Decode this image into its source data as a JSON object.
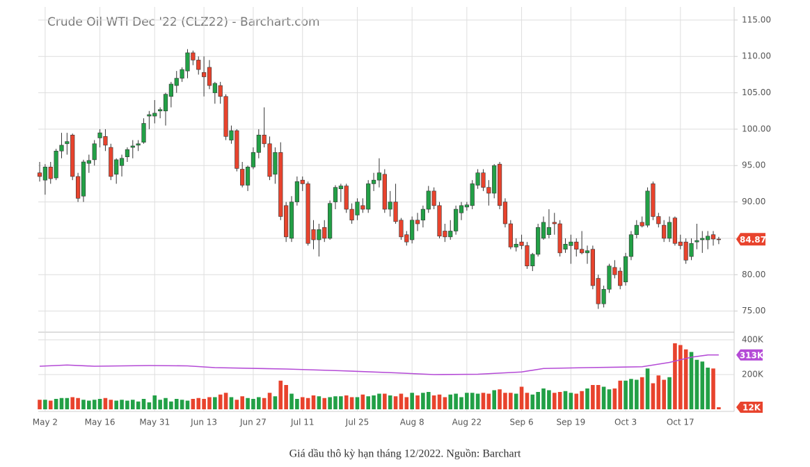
{
  "chart_data": [
    {
      "type": "candlestick",
      "title": "Crude Oil WTI Dec '22 (CLZ22) - Barchart.com",
      "categories": [
        null,
        "May 2",
        null,
        null,
        null,
        null,
        null,
        null,
        null,
        null,
        null,
        "May 16",
        null,
        null,
        null,
        null,
        null,
        null,
        null,
        null,
        null,
        "May 31",
        null,
        null,
        null,
        null,
        null,
        null,
        null,
        null,
        "Jun 13",
        null,
        null,
        null,
        null,
        null,
        null,
        null,
        null,
        "Jun 27",
        null,
        null,
        null,
        null,
        null,
        null,
        null,
        null,
        "Jul 11",
        null,
        null,
        null,
        null,
        null,
        null,
        null,
        null,
        null,
        "Jul 25",
        null,
        null,
        null,
        null,
        null,
        null,
        null,
        null,
        null,
        "Aug 8",
        null,
        null,
        null,
        null,
        null,
        null,
        null,
        null,
        null,
        "Aug 22",
        null,
        null,
        null,
        null,
        null,
        null,
        null,
        null,
        null,
        "Sep 6",
        null,
        null,
        null,
        null,
        null,
        null,
        null,
        null,
        "Sep 19",
        null,
        null,
        null,
        null,
        null,
        null,
        null,
        null,
        null,
        "Oct 3",
        null,
        null,
        null,
        null,
        null,
        null,
        null,
        null,
        null,
        "Oct 17",
        null,
        null,
        null,
        null,
        null,
        null,
        null
      ],
      "open": [
        94,
        93,
        94.8,
        93.3,
        97,
        98,
        99.2,
        93.5,
        90.8,
        95.3,
        95.8,
        98.8,
        99,
        97.5,
        93.8,
        95,
        96.2,
        97.5,
        97.8,
        98.2,
        101.8,
        101.8,
        102.5,
        102.5,
        104.5,
        106,
        107,
        108,
        110.5,
        109.5,
        107.8,
        108.5,
        105,
        106,
        104.5,
        98.5,
        99.8,
        94.5,
        92.3,
        94.8,
        96.8,
        99.2,
        98,
        93.8,
        96.8,
        89.5,
        85,
        90,
        93,
        92.5,
        86.2,
        84.8,
        86.5,
        85,
        90,
        91.8,
        92.2,
        89,
        88.2,
        89.5,
        89,
        92.5,
        93,
        93.8,
        89,
        90,
        87.5,
        85.5,
        84.8,
        87.5,
        87.5,
        89,
        91.5,
        89.5,
        86,
        85.2,
        86,
        88.5,
        89.3,
        89.5,
        92.3,
        94,
        92,
        91.2,
        95.2,
        90,
        87,
        83.8,
        84.5,
        84,
        81.2,
        82.8,
        85,
        85.5,
        87.2,
        87,
        83.5,
        84,
        84.5,
        83.5,
        83,
        83.5,
        79.5,
        76,
        78,
        81,
        80.5,
        79,
        82.5,
        85.5,
        87.2,
        86.8,
        92.5,
        88,
        86.8,
        85,
        87.8,
        84.5,
        84.5,
        82.5,
        84.5,
        84.8,
        84.8,
        85.5,
        84.9
      ],
      "high": [
        95.5,
        95.2,
        95.5,
        97.3,
        99.5,
        99.5,
        99.4,
        94,
        95.8,
        96.5,
        98.5,
        100,
        100,
        98,
        96,
        96.5,
        97.5,
        98.5,
        98.5,
        101.5,
        102.5,
        104,
        103,
        105,
        106.5,
        108,
        108.5,
        111,
        110.8,
        110,
        110,
        109.5,
        106.5,
        106.5,
        104.8,
        100.5,
        100,
        95.5,
        95,
        97.5,
        100,
        103,
        99,
        97.5,
        98.2,
        90,
        90.8,
        93.5,
        93.5,
        92.8,
        87.5,
        87,
        87.5,
        90.2,
        92.3,
        92.5,
        92.5,
        89.8,
        90.5,
        90.5,
        93,
        94,
        96,
        94.5,
        91.5,
        92.5,
        87.8,
        86,
        88,
        88.5,
        89.5,
        92.2,
        92,
        90,
        87,
        87.5,
        89.5,
        90,
        90,
        93,
        94.5,
        94.5,
        93,
        95.2,
        95.5,
        90.5,
        87.5,
        85,
        85.5,
        84.5,
        83,
        87,
        88,
        89,
        88.5,
        87.5,
        85,
        85.5,
        85,
        86,
        84,
        84,
        80,
        78.5,
        81.5,
        82,
        81,
        83,
        86,
        87.5,
        88,
        92,
        92.8,
        88.5,
        87.5,
        88,
        88,
        85.5,
        85,
        85,
        87,
        86,
        86,
        86,
        85.2
      ],
      "low": [
        92.8,
        91,
        92.5,
        93,
        96,
        96.5,
        93,
        90,
        90,
        94,
        95,
        97.5,
        97,
        93,
        92.5,
        93.5,
        95.5,
        96,
        97,
        98,
        100,
        100.8,
        101.5,
        100.5,
        103,
        105,
        106.5,
        107,
        108.8,
        107.5,
        104.5,
        105.5,
        103.5,
        103.5,
        98.5,
        98,
        94.2,
        92,
        91.5,
        94.5,
        96,
        97.5,
        93,
        92.5,
        87.5,
        84.5,
        84.5,
        89.5,
        91.5,
        84,
        83.5,
        82.5,
        84.5,
        84.8,
        89,
        90,
        88.5,
        87,
        87.5,
        88.5,
        88.5,
        91.5,
        92,
        88.5,
        88,
        87,
        84.8,
        84,
        84.3,
        86,
        86.5,
        88.5,
        89,
        85,
        84.5,
        84.8,
        85.5,
        87.5,
        88.8,
        89,
        91.8,
        91.5,
        89.5,
        90.5,
        89,
        86.5,
        83.5,
        83.2,
        83.5,
        80.8,
        80.5,
        82.5,
        84.8,
        85,
        85.5,
        82.5,
        83,
        81.5,
        82.5,
        82.8,
        81.5,
        78,
        75.3,
        75.5,
        77.5,
        79.5,
        78,
        78.5,
        82,
        85,
        86.5,
        86.5,
        87.5,
        86.5,
        84.5,
        84.5,
        84,
        83.5,
        81.5,
        82,
        83.5,
        83,
        83.5,
        84,
        84.2
      ],
      "close": [
        93.5,
        94.8,
        93.2,
        97,
        97.8,
        98.3,
        93.5,
        90.5,
        95.5,
        95.7,
        98,
        99.5,
        97.8,
        93.5,
        95.8,
        96,
        97.2,
        97.7,
        98,
        100.8,
        102,
        102.2,
        102.7,
        104.8,
        106.2,
        107,
        108.2,
        110.5,
        109.5,
        108.2,
        107.2,
        106,
        106.3,
        104.5,
        99,
        99.8,
        94.6,
        92.3,
        94.8,
        96.8,
        99.2,
        98,
        93.5,
        96.8,
        88,
        85.2,
        90,
        92.8,
        92.5,
        84.3,
        84.8,
        86.2,
        85,
        89.8,
        92,
        92.2,
        89,
        87.5,
        90,
        89,
        92.5,
        93,
        94,
        89,
        90,
        87.3,
        85.2,
        84.5,
        87.5,
        87,
        89,
        91.5,
        89.5,
        85.3,
        85.2,
        86,
        89,
        89.5,
        89.6,
        92.5,
        94,
        92,
        91.2,
        95,
        89.5,
        87,
        83.8,
        84.2,
        84,
        81.2,
        82.8,
        86.5,
        87.2,
        86.5,
        87,
        83,
        84.2,
        84.5,
        83.5,
        83,
        83.3,
        78.5,
        76,
        78,
        81.2,
        80,
        78.5,
        82.5,
        85.5,
        86.8,
        86.7,
        91.5,
        88,
        87,
        85,
        87.2,
        84.3,
        84,
        82,
        84.3,
        84.7,
        85,
        85.3,
        84.9,
        84.87
      ],
      "up_color": "#22a046",
      "down_color": "#e8432d",
      "ylim": [
        72.1,
        116.8
      ],
      "yticks": [
        {
          "value": 115,
          "label": "115.00"
        },
        {
          "value": 110,
          "label": "110.00"
        },
        {
          "value": 105,
          "label": "105.00"
        },
        {
          "value": 100,
          "label": "100.00"
        },
        {
          "value": 95,
          "label": "95.00"
        },
        {
          "value": 90,
          "label": "90.00"
        },
        {
          "value": 85,
          "label": "85.00"
        },
        {
          "value": 80,
          "label": "80.00"
        },
        {
          "value": 75,
          "label": "75.00"
        }
      ],
      "last_price": 84.87,
      "last_price_color": "#e8432d",
      "grid": true
    },
    {
      "type": "bar",
      "values": [
        55,
        55,
        50,
        60,
        65,
        65,
        70,
        65,
        55,
        50,
        55,
        60,
        65,
        55,
        50,
        55,
        50,
        55,
        45,
        60,
        40,
        80,
        55,
        65,
        45,
        60,
        55,
        50,
        60,
        65,
        60,
        70,
        70,
        85,
        95,
        70,
        55,
        75,
        65,
        60,
        70,
        65,
        95,
        75,
        165,
        140,
        90,
        60,
        70,
        65,
        80,
        75,
        65,
        70,
        75,
        75,
        80,
        70,
        70,
        85,
        75,
        80,
        90,
        90,
        80,
        75,
        90,
        70,
        95,
        80,
        95,
        100,
        80,
        85,
        70,
        85,
        90,
        70,
        95,
        95,
        90,
        95,
        90,
        110,
        115,
        95,
        95,
        90,
        130,
        95,
        85,
        100,
        120,
        110,
        95,
        100,
        105,
        95,
        90,
        105,
        120,
        140,
        140,
        130,
        115,
        120,
        165,
        165,
        175,
        170,
        185,
        235,
        150,
        195,
        170,
        185,
        380,
        370,
        345,
        330,
        285,
        275,
        240,
        235,
        12
      ],
      "ylim": [
        -12,
        444
      ],
      "yticks": [
        {
          "value": 400,
          "label": "400K"
        },
        {
          "value": 200,
          "label": "200K"
        }
      ],
      "average": {
        "x": [
          0,
          5,
          10,
          20,
          27,
          32,
          45,
          55,
          65,
          72,
          80,
          88,
          92,
          100,
          110,
          115,
          119,
          122,
          124
        ],
        "values": [
          248,
          255,
          248,
          252,
          250,
          240,
          232,
          222,
          210,
          200,
          202,
          215,
          235,
          240,
          245,
          270,
          300,
          313,
          313
        ],
        "color": "#b44ad6"
      },
      "markers": [
        {
          "value": 313,
          "label": "313K",
          "color": "#b44ad6"
        },
        {
          "value": 12,
          "label": "12K",
          "color": "#e8432d"
        }
      ]
    }
  ],
  "caption": "Giá dầu thô kỳ hạn tháng 12/2022. Nguồn: Barchart"
}
